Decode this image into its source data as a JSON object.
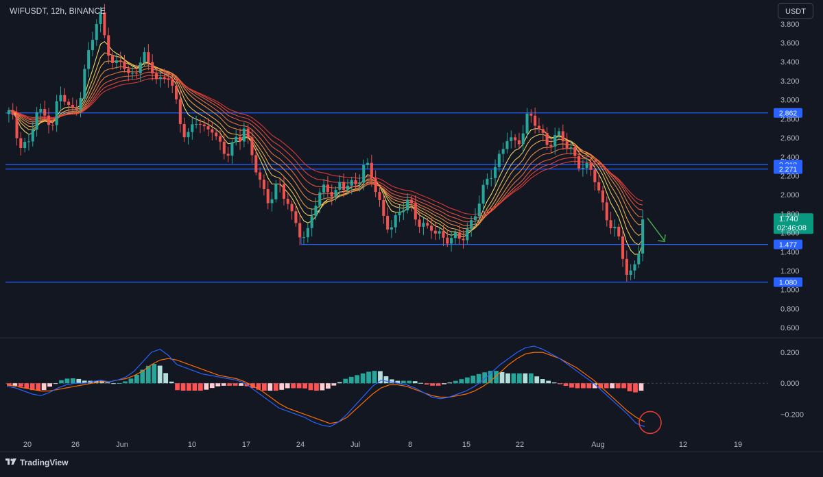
{
  "header": {
    "symbol_title": "WIFUSDT, 12h, BINANCE",
    "currency_button": "USDT"
  },
  "footer": {
    "brand": "TradingView"
  },
  "colors": {
    "background": "#131722",
    "up": "#26a69a",
    "down": "#ef5350",
    "level_line": "#2962ff",
    "level_label_bg": "#2962ff",
    "current_price_bg": "#089981",
    "macd_line": "#2962ff",
    "signal_line": "#ff6d00",
    "ribbon_fast": "#f7e36b",
    "ribbon_slow": "#e8453c",
    "annotation_arrow": "#4caf50",
    "annotation_circle": "#e53935"
  },
  "chart_data": [
    {
      "type": "candlestick",
      "ylim": [
        0.5,
        3.95
      ],
      "y_ticks": [
        3.8,
        3.6,
        3.4,
        3.2,
        3.0,
        2.8,
        2.6,
        2.4,
        2.2,
        2.0,
        1.8,
        1.6,
        1.4,
        1.2,
        1.0,
        0.8,
        0.6
      ],
      "y_tick_labels": [
        "3.800",
        "3.600",
        "3.400",
        "3.200",
        "3.000",
        "2.800",
        "2.600",
        "2.400",
        "2.200",
        "2.000",
        "1.800",
        "1.600",
        "1.400",
        "1.200",
        "1.000",
        "0.800",
        "0.600"
      ],
      "x_ticks": [
        "20",
        "26",
        "Jun",
        "10",
        "17",
        "24",
        "Jul",
        "8",
        "15",
        "22",
        "Aug",
        "12",
        "19"
      ],
      "bar_count": 160,
      "closes": [
        2.85,
        2.75,
        2.55,
        2.6,
        2.5,
        2.7,
        2.9,
        2.8,
        2.85,
        2.75,
        2.95,
        3.05,
        2.95,
        2.85,
        2.95,
        3.1,
        3.35,
        3.55,
        3.75,
        3.9,
        3.7,
        3.5,
        3.3,
        3.4,
        3.35,
        3.25,
        3.3,
        3.4,
        3.45,
        3.35,
        3.3,
        3.2,
        3.25,
        3.3,
        3.1,
        2.9,
        2.7,
        2.6,
        2.75,
        2.8,
        2.7,
        2.6,
        2.75,
        2.65,
        2.55,
        2.45,
        2.4,
        2.55,
        2.6,
        2.75,
        2.55,
        2.35,
        2.15,
        2.0,
        1.95,
        2.05,
        2.15,
        2.0,
        1.9,
        1.75,
        1.7,
        1.6,
        1.55,
        1.75,
        1.9,
        2.0,
        2.15,
        2.05,
        2.0,
        2.1,
        2.05,
        2.1,
        2.15,
        2.2,
        2.3,
        2.25,
        2.1,
        1.95,
        1.8,
        1.7,
        1.65,
        1.75,
        1.85,
        1.95,
        1.9,
        1.75,
        1.65,
        1.6,
        1.65,
        1.62,
        1.6,
        1.55,
        1.5,
        1.52,
        1.55,
        1.6,
        1.7,
        1.8,
        1.9,
        2.05,
        2.2,
        2.3,
        2.4,
        2.5,
        2.6,
        2.5,
        2.55,
        2.7,
        2.85,
        2.8,
        2.7,
        2.6,
        2.55,
        2.6,
        2.65,
        2.6,
        2.5,
        2.45,
        2.4,
        2.35,
        2.3,
        2.25,
        2.15,
        2.0,
        1.85,
        1.75,
        1.65,
        1.5,
        1.3,
        1.1,
        1.25,
        1.4,
        1.74
      ],
      "annotations": {
        "levels": [
          2.862,
          2.318,
          2.271,
          1.477,
          1.08
        ],
        "level_labels": [
          "2.862",
          "2.318",
          "2.271",
          "1.477",
          "1.080"
        ],
        "current_price": 1.74,
        "current_price_label": "1.740",
        "countdown": "02:46:08",
        "forecast_arrow": "down"
      }
    },
    {
      "type": "macd",
      "ylim": [
        -0.34,
        0.28
      ],
      "y_ticks": [
        0.2,
        0.0,
        -0.2
      ],
      "y_tick_labels": [
        "0.200",
        "0.000",
        "−0.200"
      ],
      "macd_line": [
        -0.02,
        -0.03,
        -0.05,
        -0.07,
        -0.08,
        -0.06,
        -0.03,
        -0.01,
        0.0,
        0.0,
        0.01,
        0.02,
        0.01,
        0.02,
        0.04,
        0.08,
        0.14,
        0.2,
        0.22,
        0.18,
        0.12,
        0.1,
        0.08,
        0.06,
        0.05,
        0.04,
        0.03,
        0.02,
        0.0,
        -0.04,
        -0.08,
        -0.12,
        -0.16,
        -0.18,
        -0.2,
        -0.22,
        -0.25,
        -0.27,
        -0.28,
        -0.25,
        -0.2,
        -0.14,
        -0.08,
        -0.02,
        0.02,
        0.01,
        0.0,
        -0.01,
        -0.03,
        -0.06,
        -0.09,
        -0.1,
        -0.09,
        -0.07,
        -0.05,
        -0.02,
        0.02,
        0.07,
        0.12,
        0.16,
        0.2,
        0.23,
        0.24,
        0.22,
        0.19,
        0.16,
        0.12,
        0.08,
        0.04,
        0.0,
        -0.05,
        -0.1,
        -0.15,
        -0.2,
        -0.26,
        -0.28
      ],
      "signal_line": [
        -0.01,
        -0.02,
        -0.03,
        -0.04,
        -0.05,
        -0.05,
        -0.04,
        -0.03,
        -0.02,
        -0.01,
        0.0,
        0.01,
        0.01,
        0.02,
        0.03,
        0.05,
        0.08,
        0.12,
        0.15,
        0.16,
        0.15,
        0.13,
        0.11,
        0.09,
        0.07,
        0.05,
        0.04,
        0.03,
        0.01,
        -0.02,
        -0.05,
        -0.09,
        -0.13,
        -0.16,
        -0.18,
        -0.2,
        -0.22,
        -0.24,
        -0.26,
        -0.25,
        -0.22,
        -0.17,
        -0.12,
        -0.07,
        -0.03,
        -0.01,
        -0.01,
        -0.02,
        -0.04,
        -0.06,
        -0.08,
        -0.09,
        -0.09,
        -0.08,
        -0.07,
        -0.05,
        -0.02,
        0.02,
        0.07,
        0.12,
        0.16,
        0.19,
        0.2,
        0.2,
        0.18,
        0.16,
        0.13,
        0.1,
        0.06,
        0.02,
        -0.03,
        -0.08,
        -0.13,
        -0.18,
        -0.22,
        -0.25
      ]
    }
  ]
}
